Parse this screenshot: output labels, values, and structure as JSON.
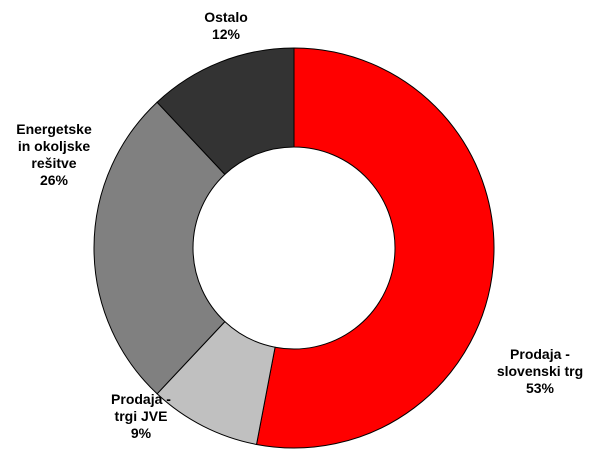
{
  "chart_data": {
    "type": "pie",
    "donut": true,
    "title": "",
    "start_angle_deg": 0,
    "direction": "clockwise",
    "slices": [
      {
        "label_lines": [
          "Prodaja -",
          "slovenski  trg"
        ],
        "value_label": "53%",
        "value": 53,
        "color": "#ff0000"
      },
      {
        "label_lines": [
          "Prodaja  -",
          "trgi JVE"
        ],
        "value_label": "9%",
        "value": 9,
        "color": "#c0c0c0"
      },
      {
        "label_lines": [
          "Energetske",
          "in okoljske",
          "rešitve"
        ],
        "value_label": "26%",
        "value": 26,
        "color": "#808080"
      },
      {
        "label_lines": [
          "Ostalo"
        ],
        "value_label": "12%",
        "value": 12,
        "color": "#333333"
      }
    ]
  }
}
